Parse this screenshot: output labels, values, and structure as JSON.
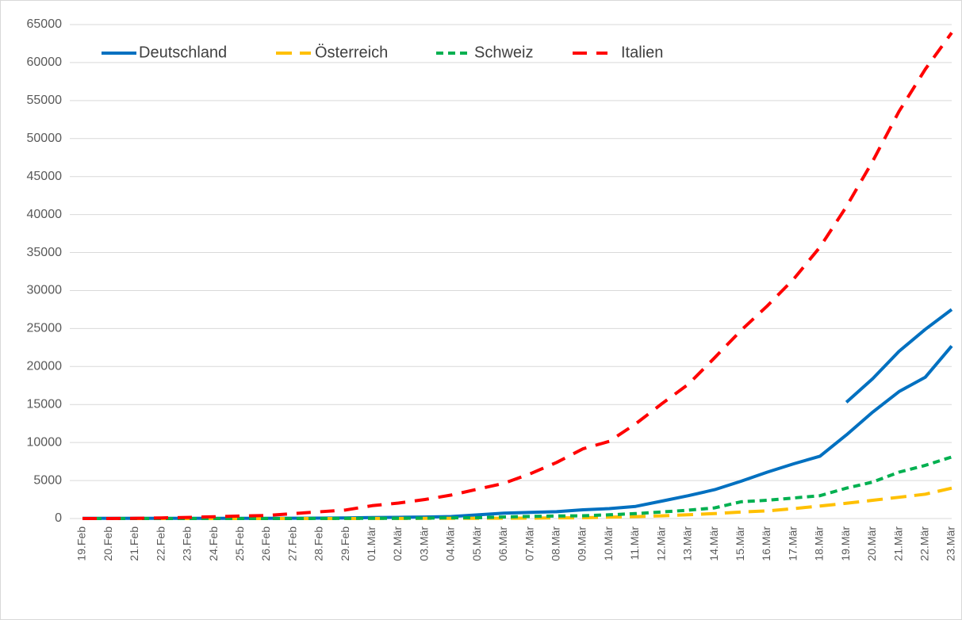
{
  "chart_data": {
    "type": "line",
    "categories": [
      "19.Feb",
      "20.Feb",
      "21.Feb",
      "22.Feb",
      "23.Feb",
      "24.Feb",
      "25.Feb",
      "26.Feb",
      "27.Feb",
      "28.Feb",
      "29.Feb",
      "01.Mär",
      "02.Mär",
      "03.Mär",
      "04.Mär",
      "05.Mär",
      "06.Mär",
      "07.Mär",
      "08.Mär",
      "09.Mär",
      "10.Mär",
      "11.Mär",
      "12.Mär",
      "13.Mär",
      "14.Mär",
      "15.Mär",
      "16.Mär",
      "17.Mär",
      "18.Mär",
      "19.Mär",
      "20.Mär",
      "21.Mär",
      "22.Mär",
      "23.Mär"
    ],
    "series": [
      {
        "name": "Deutschland",
        "color": "#0070c0",
        "dash": "none",
        "values": [
          16,
          16,
          16,
          16,
          16,
          16,
          18,
          27,
          46,
          48,
          79,
          130,
          159,
          196,
          262,
          482,
          700,
          800,
          900,
          1150,
          1300,
          1600,
          2300,
          3000,
          3800,
          4900,
          6100,
          7200,
          8200,
          11000,
          14000,
          16700,
          18600,
          22700
        ]
      },
      {
        "color": "#0070c0",
        "dash": "none",
        "values": [
          null,
          null,
          null,
          null,
          null,
          null,
          null,
          null,
          null,
          null,
          null,
          null,
          null,
          null,
          null,
          null,
          null,
          null,
          null,
          null,
          null,
          null,
          null,
          null,
          null,
          null,
          null,
          null,
          null,
          15300,
          18400,
          22000,
          24900,
          27500
        ]
      },
      {
        "name": "Österreich",
        "color": "#ffc000",
        "dash": "20 10",
        "values": [
          0,
          0,
          0,
          0,
          0,
          0,
          2,
          2,
          3,
          3,
          5,
          9,
          10,
          18,
          24,
          29,
          41,
          55,
          79,
          104,
          180,
          250,
          350,
          500,
          650,
          860,
          1000,
          1300,
          1650,
          2000,
          2400,
          2800,
          3200,
          4000
        ]
      },
      {
        "name": "Schweiz",
        "color": "#00b050",
        "dash": "9 6",
        "values": [
          0,
          0,
          0,
          0,
          0,
          0,
          1,
          1,
          1,
          8,
          18,
          24,
          30,
          56,
          90,
          100,
          200,
          280,
          330,
          370,
          490,
          650,
          870,
          1100,
          1400,
          2200,
          2400,
          2700,
          3000,
          4000,
          4800,
          6100,
          7000,
          8100
        ]
      },
      {
        "name": "Italien",
        "color": "#ff0000",
        "dash": "18 12",
        "values": [
          3,
          3,
          20,
          79,
          150,
          229,
          322,
          400,
          650,
          888,
          1128,
          1694,
          2036,
          2502,
          3089,
          3858,
          4636,
          5883,
          7375,
          9172,
          10149,
          12462,
          15113,
          17660,
          21157,
          24747,
          27980,
          31506,
          35713,
          41035,
          47021,
          53578,
          59138,
          63927
        ]
      }
    ],
    "ylim": [
      0,
      65000
    ],
    "yticks": [
      0,
      5000,
      10000,
      15000,
      20000,
      25000,
      30000,
      35000,
      40000,
      45000,
      50000,
      55000,
      60000,
      65000
    ],
    "grid": true
  }
}
